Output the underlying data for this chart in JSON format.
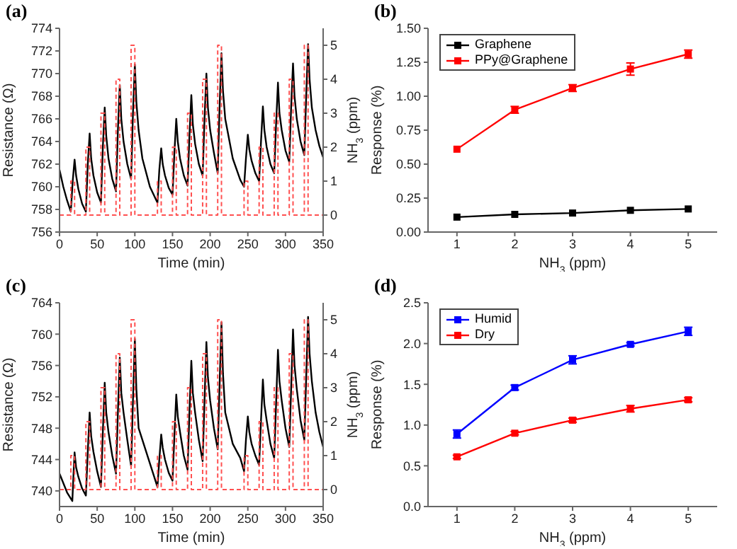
{
  "chart_data": [
    {
      "type": "line",
      "title": "(a)",
      "xlabel": "Time (min)",
      "ylabel": "Resistance (Ω)",
      "y2label": "NH$_{3}$ (ppm)",
      "xlim": [
        0,
        350
      ],
      "xticks": [
        0,
        50,
        100,
        150,
        200,
        250,
        300,
        350
      ],
      "ylim": [
        756,
        774
      ],
      "yticks": [
        756,
        758,
        760,
        762,
        764,
        766,
        768,
        770,
        772,
        774
      ],
      "y2lim": [
        -0.5,
        5.5
      ],
      "y2ticks": [
        0,
        1,
        2,
        3,
        4,
        5
      ],
      "marker": "none",
      "series": [
        {
          "type": "line",
          "color": "#000000",
          "x": [
            0,
            5,
            10,
            15,
            17.5,
            20,
            22,
            25,
            30,
            35,
            37.5,
            40,
            42,
            45,
            50,
            55,
            57.5,
            60,
            62,
            65,
            70,
            75,
            77.5,
            80,
            82,
            85,
            90,
            95,
            97.5,
            100,
            102,
            105,
            110,
            120,
            130,
            132.5,
            135,
            137,
            140,
            145,
            150,
            152.5,
            155,
            157,
            160,
            165,
            170,
            172.5,
            175,
            177,
            180,
            185,
            190,
            192.5,
            195,
            197,
            200,
            205,
            210,
            212.5,
            215,
            217,
            220,
            230,
            240,
            245,
            247.5,
            250,
            252,
            255,
            260,
            265,
            267.5,
            270,
            272,
            275,
            280,
            285,
            287.5,
            290,
            292,
            295,
            300,
            305,
            307.5,
            310,
            312,
            315,
            320,
            325,
            327.5,
            330,
            332,
            335,
            340,
            345,
            350
          ],
          "values": [
            761.5,
            760,
            758.8,
            757.8,
            760.5,
            762.4,
            761,
            759.8,
            758.5,
            757.8,
            762,
            764.7,
            762.5,
            761,
            759.5,
            758.6,
            763.5,
            767,
            764.5,
            762.5,
            760.7,
            759.6,
            765,
            769,
            766,
            764,
            762,
            760.7,
            766.5,
            770.8,
            767.5,
            765,
            762.5,
            760,
            758.6,
            761.5,
            763.4,
            762,
            761,
            759.9,
            759.3,
            763,
            766,
            764,
            762.5,
            761,
            760.1,
            764.5,
            768.1,
            765.5,
            763.8,
            762,
            761,
            766,
            770,
            767,
            765,
            763,
            761.2,
            767,
            771.8,
            768.5,
            766,
            762.5,
            760.6,
            760,
            762.5,
            764.6,
            763.3,
            762.3,
            761.2,
            760.5,
            764,
            767.1,
            765,
            763.5,
            762,
            761.2,
            765.5,
            769.2,
            766.5,
            765,
            763.2,
            762.2,
            767,
            770.9,
            768,
            766,
            764,
            762.8,
            768,
            772.6,
            769.5,
            767,
            765,
            763.6,
            762.6
          ]
        },
        {
          "type": "step",
          "axis": "y2",
          "color": "#ff5050",
          "line_style": "dashed",
          "x": [
            0,
            15,
            20,
            35,
            40,
            55,
            60,
            75,
            80,
            95,
            100,
            130,
            135,
            150,
            155,
            170,
            175,
            190,
            195,
            210,
            215,
            245,
            250,
            265,
            270,
            285,
            290,
            305,
            310,
            325,
            330,
            350
          ],
          "values": [
            0,
            1,
            0,
            2,
            0,
            3,
            0,
            4,
            0,
            5,
            0,
            1,
            0,
            2,
            0,
            3,
            0,
            4,
            0,
            5,
            0,
            1,
            0,
            2,
            0,
            3,
            0,
            4,
            0,
            5,
            0,
            0
          ]
        }
      ]
    },
    {
      "type": "line",
      "title": "(b)",
      "xlabel": "NH$_{3}$ (ppm)",
      "ylabel": "Response (%)",
      "xlim": [
        0.5,
        5.5
      ],
      "xticks": [
        1,
        2,
        3,
        4,
        5
      ],
      "ylim": [
        0,
        1.5
      ],
      "yticks": [
        {
          "value": 0,
          "label": "0.00"
        },
        {
          "value": 0.25,
          "label": "0.25"
        },
        {
          "value": 0.5,
          "label": "0.50"
        },
        {
          "value": 0.75,
          "label": "0.75"
        },
        {
          "value": 1,
          "label": "1.00"
        },
        {
          "value": 1.25,
          "label": "1.25"
        },
        {
          "value": 1.5,
          "label": "1.50"
        }
      ],
      "x": [
        1,
        2,
        3,
        4,
        5
      ],
      "marker": "square",
      "legend": "top left",
      "series": [
        {
          "name": "Graphene",
          "color": "#000000",
          "values": [
            0.11,
            0.13,
            0.14,
            0.16,
            0.17
          ]
        },
        {
          "name": "PPy@Graphene",
          "color": "#ff0000",
          "values": [
            0.61,
            0.9,
            1.06,
            1.2,
            1.31
          ],
          "errors": [
            null,
            0.025,
            0.025,
            0.045,
            0.03
          ]
        }
      ]
    },
    {
      "type": "line",
      "title": "(c)",
      "xlabel": "Time (min)",
      "ylabel": "Resistance (Ω)",
      "y2label": "NH$_{3}$ (ppm)",
      "xlim": [
        0,
        350
      ],
      "xticks": [
        0,
        50,
        100,
        150,
        200,
        250,
        300,
        350
      ],
      "ylim": [
        738,
        764
      ],
      "yticks": [
        740,
        744,
        748,
        752,
        756,
        760,
        764
      ],
      "y2lim": [
        -0.5,
        5.5
      ],
      "y2ticks": [
        0,
        1,
        2,
        3,
        4,
        5
      ],
      "marker": "none",
      "series": [
        {
          "type": "line",
          "color": "#000000",
          "x": [
            0,
            5,
            10,
            17,
            18.5,
            20,
            22,
            25,
            30,
            35,
            37.5,
            40,
            42,
            45,
            50,
            55,
            57.5,
            60,
            62,
            65,
            70,
            75,
            77.5,
            80,
            82,
            85,
            90,
            95,
            97.5,
            100,
            102,
            105,
            115,
            125,
            130,
            132.5,
            135,
            137,
            140,
            145,
            150,
            152.5,
            155,
            157,
            160,
            165,
            170,
            172.5,
            175,
            177,
            180,
            185,
            190,
            192.5,
            195,
            197,
            200,
            205,
            210,
            212.5,
            215,
            217,
            220,
            230,
            240,
            245,
            247.5,
            250,
            252,
            255,
            260,
            265,
            267.5,
            270,
            272,
            275,
            280,
            285,
            287.5,
            290,
            292,
            295,
            300,
            305,
            307.5,
            310,
            312,
            315,
            320,
            325,
            327.5,
            330,
            332,
            335,
            340,
            345,
            350
          ],
          "values": [
            742.2,
            741,
            739.8,
            738.7,
            742,
            744.9,
            743,
            741.8,
            740.3,
            739.4,
            745,
            750,
            747,
            745,
            742.5,
            740.5,
            747.5,
            753.8,
            750,
            747.5,
            744.5,
            742.2,
            750,
            757,
            752.5,
            750,
            746.5,
            743.2,
            751.5,
            759.4,
            753,
            748,
            745,
            742,
            740.5,
            744,
            747.2,
            745.5,
            744,
            742.3,
            741.3,
            747,
            752.3,
            749.5,
            747.5,
            744.5,
            742.7,
            750,
            756.6,
            752.5,
            750,
            746.5,
            743.8,
            751.5,
            759,
            754.5,
            751.5,
            748,
            745.3,
            753.5,
            761.5,
            755,
            750,
            746,
            744.2,
            742.5,
            746.5,
            749.5,
            747.5,
            746,
            744.5,
            743.3,
            749,
            754.2,
            751,
            749,
            746,
            744.2,
            751,
            758,
            754,
            751.5,
            748,
            745.6,
            753,
            760.6,
            756,
            753,
            749,
            746.5,
            754.5,
            762.2,
            757.5,
            754,
            750,
            747.5,
            745.6
          ]
        },
        {
          "type": "step",
          "axis": "y2",
          "color": "#ff5050",
          "line_style": "dashed",
          "x": [
            0,
            15,
            20,
            35,
            40,
            55,
            60,
            75,
            80,
            95,
            100,
            130,
            135,
            150,
            155,
            170,
            175,
            190,
            195,
            210,
            215,
            245,
            250,
            265,
            270,
            285,
            290,
            305,
            310,
            325,
            330,
            350
          ],
          "values": [
            0,
            1,
            0,
            2,
            0,
            3,
            0,
            4,
            0,
            5,
            0,
            1,
            0,
            2,
            0,
            3,
            0,
            4,
            0,
            5,
            0,
            1,
            0,
            2,
            0,
            3,
            0,
            4,
            0,
            5,
            0,
            0
          ]
        }
      ]
    },
    {
      "type": "line",
      "title": "(d)",
      "xlabel": "NH$_{3}$ (ppm)",
      "ylabel": "Response (%)",
      "xlim": [
        0.5,
        5.5
      ],
      "xticks": [
        1,
        2,
        3,
        4,
        5
      ],
      "ylim": [
        0,
        2.5
      ],
      "yticks": [
        {
          "value": 0,
          "label": "0.0"
        },
        {
          "value": 0.5,
          "label": "0.5"
        },
        {
          "value": 1,
          "label": "1.0"
        },
        {
          "value": 1.5,
          "label": "1.5"
        },
        {
          "value": 2,
          "label": "2.0"
        },
        {
          "value": 2.5,
          "label": "2.5"
        }
      ],
      "x": [
        1,
        2,
        3,
        4,
        5
      ],
      "marker": "square",
      "legend": "top left",
      "series": [
        {
          "name": "Humid",
          "color": "#0000ff",
          "values": [
            0.89,
            1.46,
            1.8,
            1.99,
            2.15
          ],
          "errors": [
            0.05,
            0.03,
            0.05,
            0.02,
            0.05
          ]
        },
        {
          "name": "Dry",
          "color": "#ff0000",
          "values": [
            0.61,
            0.9,
            1.06,
            1.2,
            1.31
          ],
          "errors": [
            0.02,
            0.02,
            0.025,
            0.04,
            0.025
          ]
        }
      ]
    }
  ]
}
